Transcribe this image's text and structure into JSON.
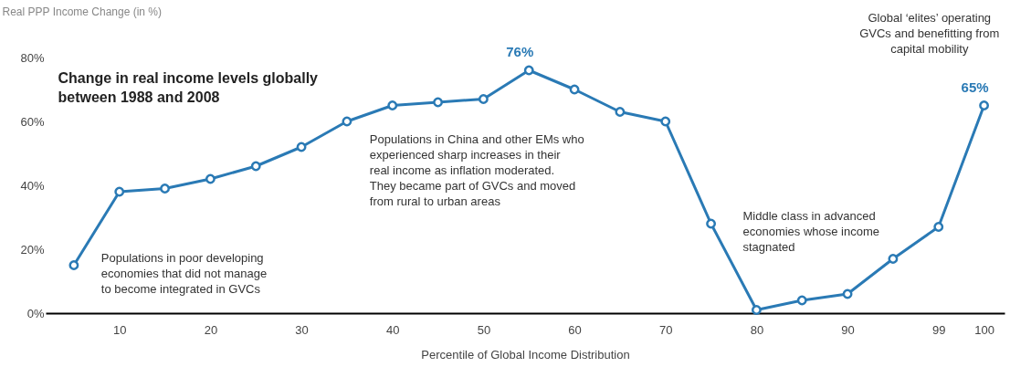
{
  "chart_data": {
    "type": "line",
    "title": "Change in real income levels globally between 1988 and 2008",
    "ylabel": "Real PPP Income Change (in %)",
    "xlabel": "Percentile of Global Income Distribution",
    "categories": [
      null,
      "10",
      null,
      "20",
      null,
      "30",
      null,
      "40",
      null,
      "50",
      null,
      "60",
      null,
      "70",
      null,
      "80",
      null,
      "90",
      null,
      "99",
      "100"
    ],
    "series": [
      {
        "color": "#2a7ab5",
        "values": [
          15,
          38,
          39,
          42,
          46,
          52,
          60,
          65,
          66,
          67,
          76,
          70,
          63,
          60,
          28,
          1,
          4,
          6,
          17,
          27,
          65
        ],
        "value_labels": [
          null,
          null,
          null,
          null,
          null,
          null,
          null,
          null,
          null,
          null,
          "76%",
          null,
          null,
          null,
          null,
          null,
          null,
          null,
          null,
          null,
          "65%"
        ]
      }
    ],
    "ylim": [
      0,
      80
    ],
    "yticks": [
      {
        "value": 0,
        "label": "0%"
      },
      {
        "value": 20,
        "label": "20%"
      },
      {
        "value": 40,
        "label": "40%"
      },
      {
        "value": 60,
        "label": "60%"
      },
      {
        "value": 80,
        "label": "80%"
      }
    ],
    "marker": "circle",
    "line_style": "solid",
    "annotations": [
      "Populations in poor developing economies that did not manage to become integrated in GVCs",
      "Populations in China and other EMs who experienced sharp increases in their real income as inflation moderated. They became part of GVCs and moved from rural to urban areas",
      "Middle class in advanced economies whose income stagnated",
      "Global ‘elites’ operating GVCs and benefitting from capital mobility"
    ]
  }
}
